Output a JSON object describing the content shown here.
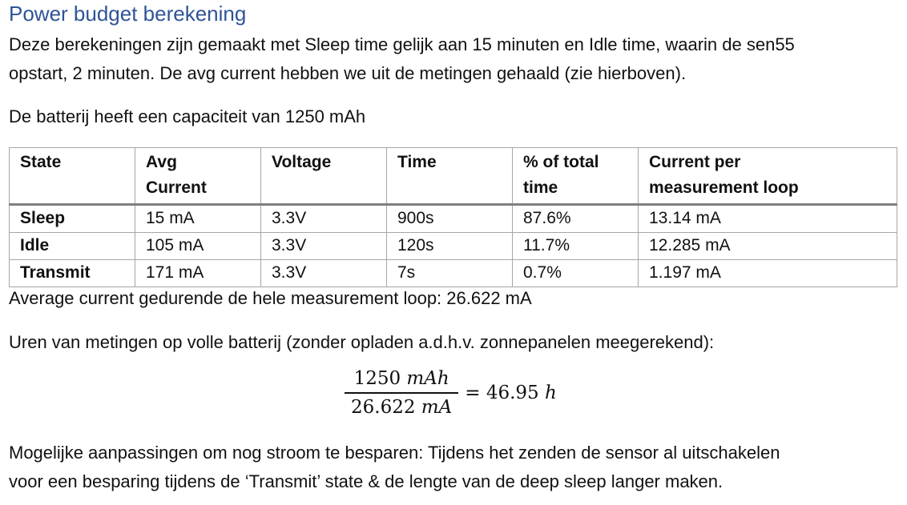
{
  "heading": "Power budget berekening",
  "intro": {
    "line1": "Deze berekeningen zijn gemaakt met Sleep time gelijk aan 15 minuten en Idle time, waarin de sen55",
    "line2": "opstart, 2 minuten. De avg current hebben we uit de metingen gehaald (zie hierboven)."
  },
  "battery": "De batterij heeft een capaciteit van 1250 mAh",
  "table": {
    "headers": {
      "state": "State",
      "avg1": "Avg",
      "avg2": "Current",
      "voltage": "Voltage",
      "time": "Time",
      "pct1": "% of total",
      "pct2": "time",
      "cur1": "Current per",
      "cur2": "measurement loop"
    },
    "rows": [
      {
        "state": "Sleep",
        "avg": "15 mA",
        "voltage": "3.3V",
        "time": "900s",
        "pct": "87.6%",
        "current": "13.14 mA"
      },
      {
        "state": "Idle",
        "avg": "105 mA",
        "voltage": "3.3V",
        "time": "120s",
        "pct": "11.7%",
        "current": "12.285 mA"
      },
      {
        "state": "Transmit",
        "avg": "171 mA",
        "voltage": "3.3V",
        "time": "7s",
        "pct": "0.7%",
        "current": "1.197 mA"
      }
    ]
  },
  "average": "Average current gedurende de hele measurement loop: 26.622 mA",
  "hours": "Uren van metingen op volle batterij (zonder opladen a.d.h.v. zonnepanelen meegerekend):",
  "formula": {
    "num_value": "1250",
    "num_unit": "mAh",
    "den_value": "26.622",
    "den_unit": "mA",
    "equals": "=",
    "result_value": "46.95",
    "result_unit": "h"
  },
  "outro": {
    "line1": "Mogelijke aanpassingen om nog stroom te besparen: Tijdens het zenden de sensor al uitschakelen",
    "line2": "voor een besparing tijdens de ‘Transmit’ state & de lengte van de deep sleep langer maken."
  }
}
